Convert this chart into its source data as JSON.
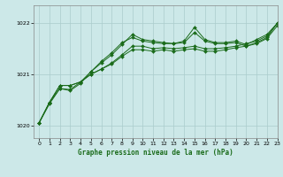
{
  "title": "Graphe pression niveau de la mer (hPa)",
  "bg_color": "#cce8e8",
  "grid_color": "#aacccc",
  "line_color": "#1a6b1a",
  "xlim": [
    -0.5,
    23
  ],
  "ylim": [
    1019.75,
    1022.35
  ],
  "yticks": [
    1020,
    1021,
    1022
  ],
  "xticks": [
    0,
    1,
    2,
    3,
    4,
    5,
    6,
    7,
    8,
    9,
    10,
    11,
    12,
    13,
    14,
    15,
    16,
    17,
    18,
    19,
    20,
    21,
    22,
    23
  ],
  "series": [
    [
      1020.05,
      1020.45,
      1020.78,
      1020.78,
      1020.85,
      1021.0,
      1021.1,
      1021.22,
      1021.38,
      1021.55,
      1021.55,
      1021.5,
      1021.52,
      1021.5,
      1021.52,
      1021.55,
      1021.5,
      1021.5,
      1021.52,
      1021.55,
      1021.6,
      1021.65,
      1021.75,
      1022.0
    ],
    [
      1020.05,
      1020.45,
      1020.78,
      1020.78,
      1020.85,
      1021.0,
      1021.1,
      1021.2,
      1021.35,
      1021.48,
      1021.48,
      1021.45,
      1021.48,
      1021.45,
      1021.48,
      1021.5,
      1021.45,
      1021.45,
      1021.48,
      1021.52,
      1021.55,
      1021.6,
      1021.7,
      1021.95
    ],
    [
      1020.05,
      1020.45,
      1020.72,
      1020.7,
      1020.85,
      1021.05,
      1021.22,
      1021.38,
      1021.58,
      1021.78,
      1021.68,
      1021.65,
      1021.62,
      1021.6,
      1021.65,
      1021.92,
      1021.68,
      1021.62,
      1021.62,
      1021.65,
      1021.58,
      1021.68,
      1021.78,
      1022.0
    ],
    [
      1020.05,
      1020.42,
      1020.72,
      1020.68,
      1020.82,
      1021.05,
      1021.25,
      1021.42,
      1021.62,
      1021.72,
      1021.65,
      1021.62,
      1021.6,
      1021.6,
      1021.62,
      1021.82,
      1021.65,
      1021.6,
      1021.6,
      1021.62,
      1021.55,
      1021.62,
      1021.72,
      1022.0
    ]
  ]
}
